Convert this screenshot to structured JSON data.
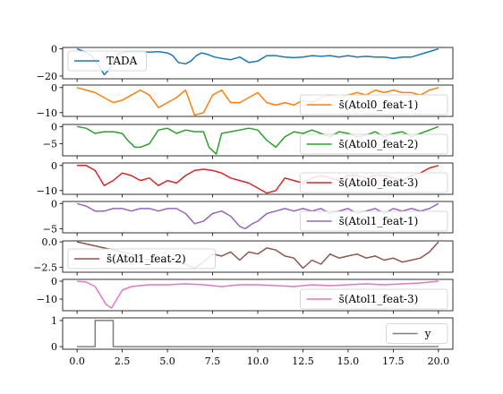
{
  "chart_data": {
    "type": "line",
    "x_range": [
      -0.8,
      20.8
    ],
    "x_ticks": [
      "0.0",
      "2.5",
      "5.0",
      "7.5",
      "10.0",
      "12.5",
      "15.0",
      "17.5",
      "20.0"
    ],
    "x_tick_values": [
      0,
      2.5,
      5,
      7.5,
      10,
      12.5,
      15,
      17.5,
      20
    ],
    "panels": [
      {
        "name": "TADA",
        "color": "#1f77b4",
        "ylim": [
          -22,
          1
        ],
        "y_ticks": [
          {
            "v": 0,
            "label": "0"
          },
          {
            "v": -20,
            "label": "−20"
          }
        ],
        "legend": "top-left",
        "x": [
          0,
          0.4,
          0.8,
          1.2,
          1.5,
          1.8,
          2.1,
          2.4,
          3.0,
          3.5,
          4.0,
          4.5,
          5.0,
          5.3,
          5.6,
          6.0,
          6.3,
          6.6,
          6.9,
          7.2,
          7.6,
          8.0,
          8.5,
          9.0,
          9.5,
          10.0,
          10.5,
          11.0,
          11.5,
          12.0,
          12.5,
          13.0,
          13.5,
          14.0,
          14.5,
          15.0,
          15.5,
          16.0,
          16.5,
          17.0,
          17.5,
          18.0,
          18.5,
          19.0,
          19.5,
          20.0
        ],
        "y": [
          0,
          -2,
          -5,
          -12,
          -19,
          -15,
          -6,
          -3,
          -2,
          -2,
          -2.5,
          -2,
          -3,
          -5,
          -10,
          -11,
          -9,
          -5,
          -3,
          -4,
          -6,
          -7,
          -8,
          -6,
          -10,
          -9,
          -5,
          -5,
          -6,
          -6.5,
          -6,
          -5,
          -5.5,
          -5,
          -6,
          -5,
          -6,
          -5.5,
          -6,
          -6,
          -7,
          -6,
          -6,
          -4,
          -2,
          0
        ]
      },
      {
        "name": "s̄(Atol0_feat-1)",
        "color": "#ff7f0e",
        "ylim": [
          -11.5,
          1
        ],
        "y_ticks": [
          {
            "v": 0,
            "label": "0"
          },
          {
            "v": -10,
            "label": "−10"
          }
        ],
        "legend": "bottom-right",
        "x": [
          0,
          0.5,
          1.0,
          1.5,
          2.0,
          2.5,
          3.0,
          3.5,
          4.0,
          4.5,
          5.0,
          5.5,
          6.0,
          6.2,
          6.5,
          7.0,
          7.5,
          8.0,
          8.5,
          9.0,
          9.5,
          10.0,
          10.5,
          11.0,
          11.5,
          12.0,
          12.5,
          13.0,
          13.5,
          14.0,
          14.5,
          15.0,
          15.5,
          16.0,
          16.5,
          17.0,
          17.5,
          18.0,
          18.5,
          19.0,
          19.5,
          20.0
        ],
        "y": [
          0,
          -1,
          -2,
          -4,
          -6,
          -5,
          -3,
          -1,
          -3,
          -8,
          -6,
          -4,
          -1,
          -5,
          -11,
          -10,
          -3,
          -1,
          -6,
          -6,
          -4,
          -2,
          -6,
          -7,
          -6,
          -7,
          -5,
          -6,
          -4,
          -3,
          -4,
          -3,
          -2,
          -3,
          -1,
          -2,
          -1,
          -2,
          -2,
          -3,
          -1,
          0
        ]
      },
      {
        "name": "s̄(Atol0_feat-2)",
        "color": "#2ca02c",
        "ylim": [
          -8.5,
          0.6
        ],
        "y_ticks": [
          {
            "v": 0,
            "label": "0"
          },
          {
            "v": -5,
            "label": "−5"
          }
        ],
        "legend": "bottom-right",
        "x": [
          0,
          0.5,
          1.0,
          1.5,
          2.0,
          2.5,
          2.8,
          3.2,
          3.5,
          4.0,
          4.5,
          5.0,
          5.5,
          6.0,
          6.5,
          7.0,
          7.3,
          7.7,
          8.0,
          8.5,
          9.0,
          9.5,
          10.0,
          10.5,
          11.0,
          11.5,
          12.0,
          12.5,
          13.0,
          13.5,
          14.0,
          14.5,
          15.0,
          15.5,
          16.0,
          16.5,
          17.0,
          17.5,
          18.0,
          18.5,
          19.0,
          19.5,
          20.0
        ],
        "y": [
          0,
          -0.5,
          -2,
          -1.5,
          -1.5,
          -2,
          -4,
          -6,
          -6,
          -5,
          -1,
          -0.5,
          -2,
          -1,
          -1.5,
          -1.5,
          -6,
          -8,
          -2,
          -1.5,
          -1,
          -0.5,
          -1,
          -4,
          -6,
          -3,
          -1.5,
          -2,
          -1,
          -2,
          -3,
          -1.5,
          -2,
          -3,
          -2.5,
          -1.5,
          -3,
          -2,
          -1.5,
          -3,
          -2,
          -1,
          0
        ]
      },
      {
        "name": "s̄(Atol0_feat-3)",
        "color": "#d62728",
        "ylim": [
          -11.5,
          1
        ],
        "y_ticks": [
          {
            "v": 0,
            "label": "0"
          },
          {
            "v": -10,
            "label": "−10"
          }
        ],
        "legend": "bottom-right",
        "x": [
          0,
          0.5,
          1.0,
          1.5,
          2.0,
          2.5,
          3.0,
          3.5,
          4.0,
          4.5,
          5.0,
          5.5,
          6.0,
          6.5,
          7.0,
          7.5,
          8.0,
          8.5,
          9.0,
          9.5,
          10.0,
          10.5,
          11.0,
          11.5,
          12.0,
          12.5,
          13.0,
          13.5,
          14.0,
          14.5,
          15.0,
          15.5,
          16.0,
          16.5,
          17.0,
          17.5,
          18.0,
          18.5,
          19.0,
          19.5,
          20.0
        ],
        "y": [
          0,
          0,
          -2,
          -8,
          -6,
          -3,
          -4,
          -6,
          -5,
          -8,
          -6,
          -7,
          -4,
          -2,
          -1.5,
          -2,
          -3,
          -5,
          -6,
          -7,
          -9,
          -11,
          -10,
          -5,
          -6,
          -7,
          -5,
          -4,
          -5,
          -6,
          -4,
          -4,
          -5,
          -4,
          -4,
          -5,
          -6,
          -4,
          -3,
          -1,
          0
        ]
      },
      {
        "name": "s̄(Atol1_feat-1)",
        "color": "#9467bd",
        "ylim": [
          -5.8,
          0.4
        ],
        "y_ticks": [
          {
            "v": 0,
            "label": "0"
          },
          {
            "v": -5,
            "label": "−5"
          }
        ],
        "legend": "bottom-right",
        "x": [
          0,
          0.5,
          1.0,
          1.5,
          2.0,
          2.5,
          3.0,
          3.5,
          4.0,
          4.5,
          5.0,
          5.5,
          6.0,
          6.5,
          7.0,
          7.5,
          8.0,
          8.5,
          9.0,
          9.3,
          9.7,
          10.0,
          10.5,
          11.0,
          11.5,
          12.0,
          12.5,
          13.0,
          13.5,
          14.0,
          14.5,
          15.0,
          15.5,
          16.0,
          16.5,
          17.0,
          17.5,
          18.0,
          18.5,
          19.0,
          19.5,
          20.0
        ],
        "y": [
          0,
          -0.5,
          -1.5,
          -1.5,
          -1,
          -1,
          -1.5,
          -1,
          -1,
          -1.5,
          -1,
          -1,
          -2,
          -4,
          -3.5,
          -2,
          -1.5,
          -2.5,
          -4.5,
          -5,
          -4,
          -3.5,
          -2,
          -1.5,
          -1,
          -1.5,
          -1,
          -1.5,
          -1,
          -2,
          -1.5,
          -1,
          -2,
          -1.5,
          -1,
          -2,
          -1,
          -1.5,
          -1,
          -1.5,
          -1,
          0
        ]
      },
      {
        "name": "s̄(Atol1_feat-2)",
        "color": "#8c564b",
        "ylim": [
          -3.0,
          0.1
        ],
        "y_ticks": [
          {
            "v": 0,
            "label": "0.0"
          },
          {
            "v": -2.5,
            "label": "−2.5"
          }
        ],
        "legend": "bottom-left",
        "x": [
          0,
          0.5,
          1.0,
          1.5,
          2.0,
          2.5,
          3.0,
          3.5,
          4.0,
          4.5,
          5.0,
          5.5,
          6.0,
          6.5,
          7.0,
          7.5,
          8.0,
          8.5,
          9.0,
          9.5,
          10.0,
          10.5,
          11.0,
          11.5,
          12.0,
          12.5,
          13.0,
          13.5,
          14.0,
          14.5,
          15.0,
          15.5,
          16.0,
          16.5,
          17.0,
          17.5,
          18.0,
          18.5,
          19.0,
          19.5,
          20.0
        ],
        "y": [
          0,
          -0.2,
          -0.4,
          -0.6,
          -0.8,
          -1.0,
          -1.2,
          -1.6,
          -1.8,
          -2.0,
          -1.8,
          -2.0,
          -2.2,
          -2.6,
          -2.0,
          -1.2,
          -1.4,
          -1.0,
          -1.8,
          -1.0,
          -1.2,
          -0.6,
          -0.8,
          -1.4,
          -1.6,
          -2.6,
          -1.8,
          -2.2,
          -1.2,
          -1.6,
          -1.4,
          -1.2,
          -1.6,
          -1.4,
          -1.8,
          -1.6,
          -2.0,
          -1.8,
          -1.6,
          -1.0,
          0
        ]
      },
      {
        "name": "s̄(Atol1_feat-3)",
        "color": "#e377c2",
        "ylim": [
          -16.5,
          1
        ],
        "y_ticks": [
          {
            "v": 0,
            "label": "0"
          },
          {
            "v": -10,
            "label": "−10"
          }
        ],
        "legend": "bottom-right",
        "x": [
          0,
          0.5,
          1.0,
          1.3,
          1.6,
          1.9,
          2.2,
          2.5,
          3.0,
          3.5,
          4.0,
          5.0,
          6.0,
          7.0,
          8.0,
          9.0,
          10.0,
          11.0,
          12.0,
          13.0,
          14.0,
          15.0,
          16.0,
          17.0,
          18.0,
          19.0,
          20.0
        ],
        "y": [
          0,
          -0.5,
          -3,
          -8,
          -13,
          -15,
          -10,
          -5,
          -3,
          -2.5,
          -2,
          -2,
          -1.5,
          -2,
          -3,
          -2,
          -2,
          -2.5,
          -3,
          -2,
          -2.5,
          -2,
          -1.5,
          -2,
          -1.5,
          -1,
          0
        ]
      },
      {
        "name": "y",
        "color": "#7f7f7f",
        "ylim": [
          -0.1,
          1.1
        ],
        "y_ticks": [
          {
            "v": 0,
            "label": "0"
          },
          {
            "v": 1,
            "label": "1"
          }
        ],
        "legend": "right",
        "x": [
          0,
          1.0,
          1.0,
          2.0,
          2.0,
          20.0
        ],
        "y": [
          0,
          0,
          1,
          1,
          0,
          0
        ]
      }
    ]
  }
}
